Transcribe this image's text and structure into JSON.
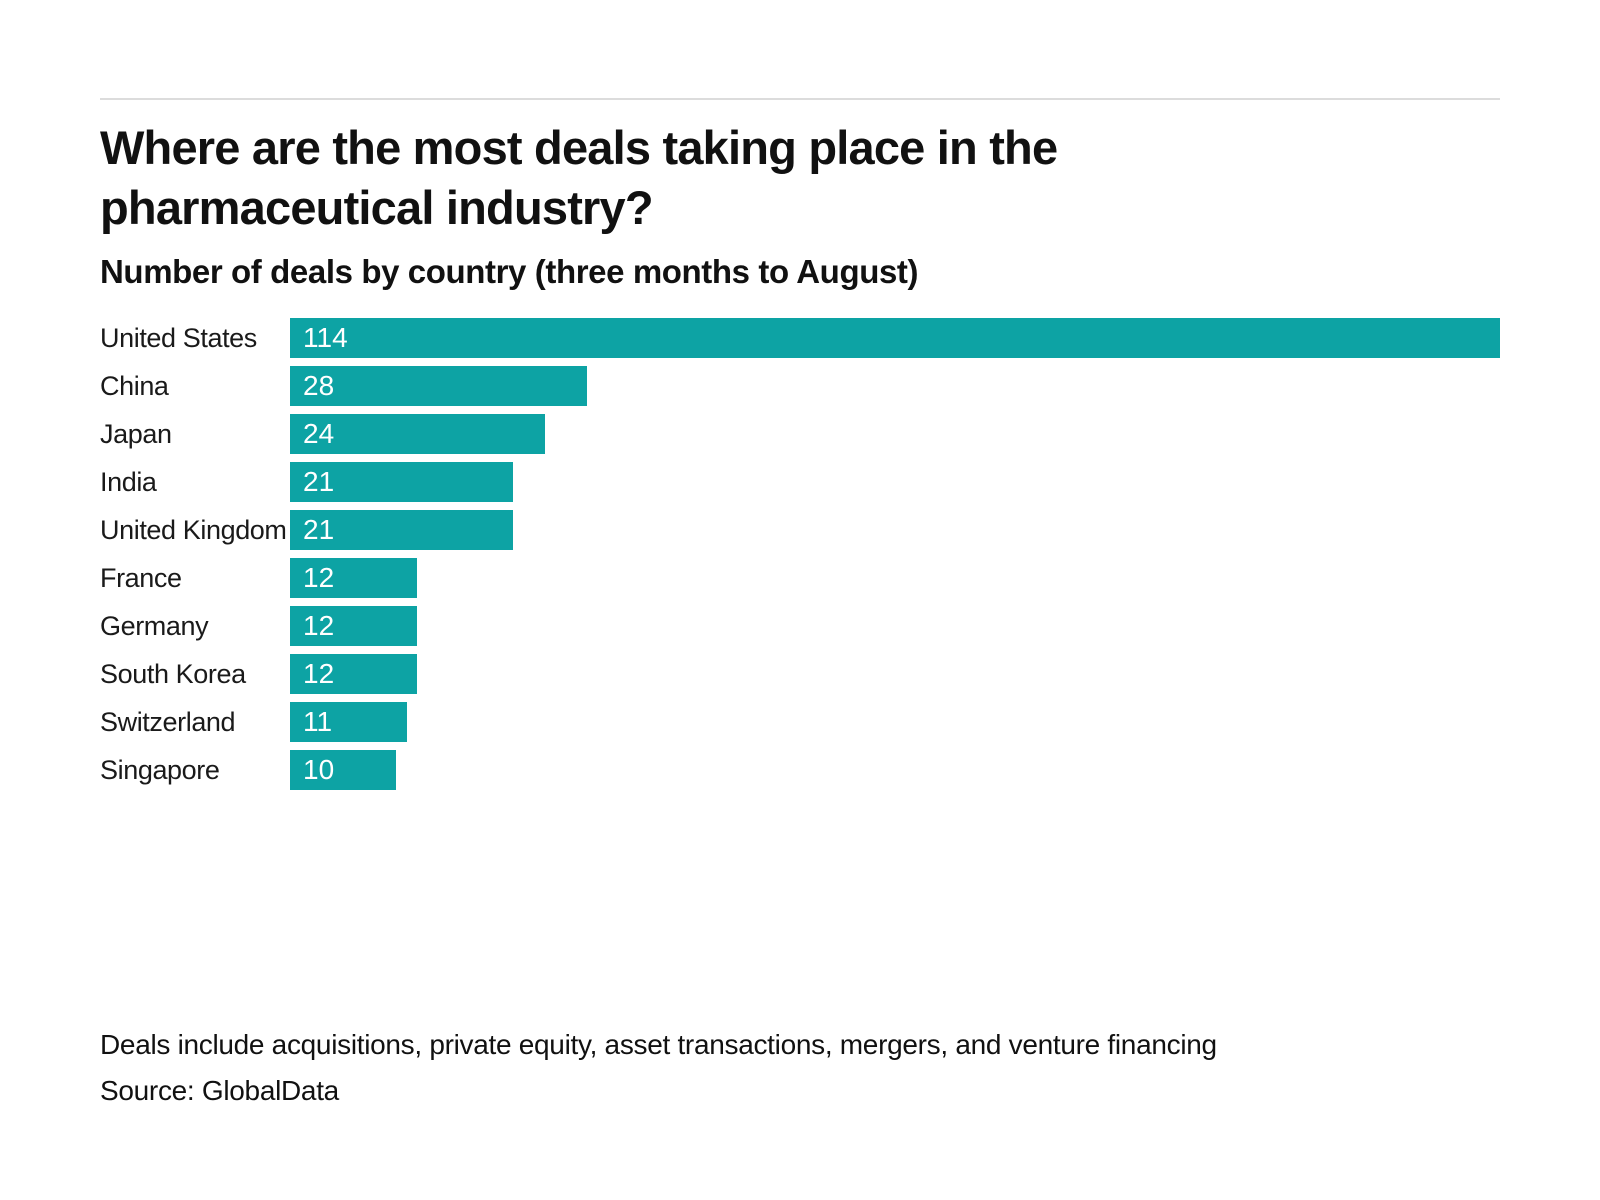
{
  "title": {
    "lines": [
      "Where are the most deals taking place in the",
      "pharmaceutical industry?"
    ]
  },
  "chart_data": {
    "type": "bar",
    "orientation": "horizontal",
    "title": "Where are the most deals taking place in the pharmaceutical industry?",
    "subtitle": "Number of deals by country (three months to August)",
    "categories": [
      "United States",
      "China",
      "Japan",
      "India",
      "United Kingdom",
      "France",
      "Germany",
      "South Korea",
      "Switzerland",
      "Singapore"
    ],
    "values": [
      114,
      28,
      24,
      21,
      21,
      12,
      12,
      12,
      11,
      10
    ],
    "xlim": [
      0,
      114
    ],
    "grid": false,
    "legend": false,
    "value_labels_position": "inside-left",
    "bar_color": "#0DA3A4",
    "value_label_color": "#FFFFFF"
  },
  "footer": {
    "note": "Deals include acquisitions, private equity, asset transactions, mergers, and venture financing",
    "source": "Source: GlobalData"
  }
}
